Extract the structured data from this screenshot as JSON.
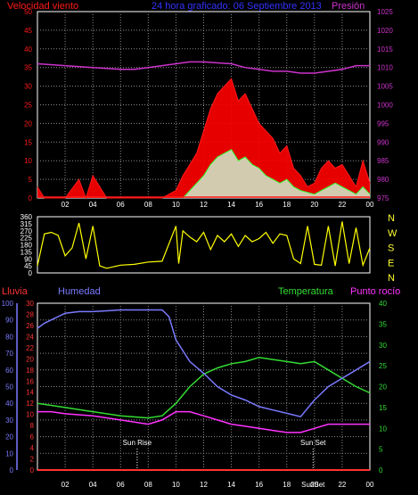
{
  "colors": {
    "wind": "#ff1a1a",
    "gust_fill": "#ff0000",
    "wind_avg": "#33ff33",
    "wind_low": "#cfeecf",
    "pressure": "#cc33cc",
    "direction": "#ffff00",
    "title": "#3333ff",
    "humidity": "#7a7aff",
    "temperature": "#33dd33",
    "dewpoint": "#ff33ff",
    "rain": "#ff3333",
    "axis": "#ffffff",
    "grid": "#8a8a8a"
  },
  "top_panel": {
    "left_label": "Velocidad viento",
    "title": "24 hora graficado: 06 Septiembre 2013",
    "right_label": "Presión"
  },
  "direction_panel": {
    "compass": [
      "N",
      "W",
      "S",
      "E",
      "N"
    ]
  },
  "bottom_panel": {
    "rain_label": "Lluvia",
    "humidity_label": "Humedad",
    "temperature_label": "Temperatura",
    "dewpoint_label": "Punto rocío",
    "sunrise_label": "Sun Rise",
    "sunset_label": "Sun Set",
    "sunset_label_axis": "SunSet"
  },
  "chart_data": [
    {
      "type": "line",
      "panel": "wind-pressure",
      "x_ticks": [
        "02",
        "04",
        "06",
        "08",
        "10",
        "12",
        "14",
        "16",
        "18",
        "20",
        "22",
        "00"
      ],
      "y_left_ticks": [
        0,
        5,
        10,
        15,
        20,
        25,
        30,
        35,
        40,
        45,
        50
      ],
      "y_left_range": [
        0,
        50
      ],
      "y_right_ticks": [
        975,
        980,
        985,
        990,
        995,
        1000,
        1005,
        1010,
        1015,
        1020,
        1025
      ],
      "y_right_range": [
        975,
        1025
      ],
      "x_range": [
        0,
        24
      ],
      "grid": true,
      "series": [
        {
          "kind": "pressure",
          "x": [
            0,
            2,
            4,
            6,
            7,
            8,
            10,
            11,
            12,
            14,
            15,
            16,
            17,
            18,
            19,
            20,
            22,
            23,
            24
          ],
          "y": [
            1011,
            1010.5,
            1010,
            1009.5,
            1009.5,
            1010,
            1011,
            1011.5,
            1011.5,
            1011,
            1010,
            1009.5,
            1009,
            1009,
            1008.5,
            1008.5,
            1009.5,
            1010.5,
            1010.5
          ]
        },
        {
          "kind": "gust",
          "x": [
            0,
            0.5,
            2,
            3,
            3.5,
            4,
            5,
            7,
            8,
            9,
            10,
            10.5,
            11,
            11.5,
            12,
            12.5,
            13,
            13.5,
            14,
            14.5,
            15,
            15.5,
            16,
            16.5,
            17,
            17.5,
            18,
            18.5,
            19,
            19.5,
            20,
            20.5,
            21,
            21.5,
            22,
            22.5,
            23,
            23.5,
            24
          ],
          "y": [
            3,
            0,
            0,
            5,
            0,
            6,
            0,
            0,
            0,
            0,
            2,
            6,
            9,
            12,
            18,
            24,
            28,
            30,
            32,
            26,
            28,
            24,
            20,
            18,
            16,
            12,
            14,
            8,
            6,
            3,
            4,
            8,
            10,
            8,
            9,
            6,
            3,
            10,
            4
          ]
        },
        {
          "kind": "average",
          "x": [
            10.5,
            11,
            11.5,
            12,
            12.5,
            13,
            13.5,
            14,
            14.5,
            15,
            15.5,
            16,
            16.5,
            17,
            17.5,
            18,
            18.5,
            19,
            20,
            20.5,
            21,
            21.5,
            22,
            22.5,
            23,
            23.5,
            24
          ],
          "y": [
            0,
            2,
            4,
            6,
            9,
            11,
            12,
            13,
            10,
            11,
            9,
            8,
            6,
            5,
            4,
            5,
            3,
            2,
            1,
            2,
            3,
            4,
            3,
            2,
            1,
            3,
            1
          ]
        }
      ]
    },
    {
      "type": "line",
      "panel": "wind-direction",
      "y_left_ticks": [
        0,
        45,
        90,
        135,
        180,
        225,
        270,
        315,
        360
      ],
      "y_left_range": [
        0,
        360
      ],
      "x_range": [
        0,
        24
      ],
      "series": [
        {
          "kind": "direction",
          "x": [
            0,
            0.5,
            1,
            1.5,
            2,
            2.5,
            3,
            3.5,
            4,
            4.5,
            5,
            6,
            7,
            8,
            9,
            10,
            10.2,
            10.5,
            11,
            11.5,
            12,
            12.5,
            13,
            13.5,
            14,
            14.5,
            15,
            15.5,
            16,
            16.5,
            17,
            17.5,
            18,
            18.5,
            19,
            19.5,
            20,
            20.5,
            21,
            21.5,
            22,
            22.5,
            23,
            23.5,
            24
          ],
          "y": [
            45,
            250,
            260,
            240,
            110,
            160,
            320,
            90,
            300,
            45,
            30,
            50,
            55,
            70,
            75,
            300,
            60,
            270,
            230,
            200,
            260,
            150,
            240,
            200,
            250,
            170,
            240,
            200,
            220,
            260,
            190,
            250,
            240,
            90,
            60,
            300,
            55,
            50,
            300,
            45,
            330,
            60,
            290,
            50,
            160
          ]
        }
      ]
    },
    {
      "type": "line",
      "panel": "humidity-temperature",
      "x_ticks": [
        "02",
        "04",
        "06",
        "08",
        "10",
        "12",
        "14",
        "16",
        "18",
        "20",
        "22",
        "00"
      ],
      "y_humidity_ticks": [
        0,
        10,
        20,
        30,
        40,
        50,
        60,
        70,
        80,
        90,
        100
      ],
      "y_humidity_range": [
        0,
        100
      ],
      "y_rain_ticks": [
        0,
        2,
        4,
        6,
        8,
        10,
        12,
        14,
        16,
        18,
        20,
        22,
        24,
        26,
        28,
        30
      ],
      "y_rain_range": [
        0,
        30
      ],
      "y_temp_ticks": [
        0,
        5,
        10,
        15,
        20,
        25,
        30,
        35,
        40
      ],
      "y_temp_range": [
        0,
        40
      ],
      "x_range": [
        0,
        24
      ],
      "grid": true,
      "series": [
        {
          "kind": "humidity",
          "x": [
            0,
            0.5,
            1,
            2,
            3,
            4,
            6,
            8,
            9,
            9.5,
            10,
            11,
            12,
            13,
            14,
            15,
            16,
            17,
            18,
            19,
            20,
            21,
            22,
            23,
            24
          ],
          "y": [
            85,
            88,
            90,
            94,
            95,
            95,
            96,
            96,
            96,
            92,
            78,
            65,
            58,
            50,
            45,
            42,
            38,
            36,
            34,
            32,
            42,
            50,
            55,
            60,
            65
          ]
        },
        {
          "kind": "temperature",
          "x": [
            0,
            1,
            2,
            4,
            6,
            8,
            9,
            10,
            11,
            12,
            13,
            14,
            15,
            16,
            17,
            18,
            19,
            20,
            21,
            22,
            23,
            24
          ],
          "y": [
            16,
            15.5,
            15,
            14,
            13,
            12.5,
            13,
            16,
            20,
            23,
            24.5,
            25.5,
            26,
            27,
            26.5,
            26,
            25.5,
            26,
            24,
            22,
            20,
            18.5
          ]
        },
        {
          "kind": "dewpoint",
          "x": [
            0,
            1,
            2,
            4,
            6,
            8,
            9,
            10,
            11,
            12,
            13,
            14,
            15,
            16,
            17,
            18,
            19,
            20,
            21,
            22,
            23,
            24
          ],
          "y": [
            14,
            14,
            13.5,
            13,
            12,
            11,
            12,
            14,
            14,
            13,
            12,
            11,
            10.5,
            10,
            9.5,
            9,
            9,
            10,
            11,
            11,
            11,
            11
          ]
        },
        {
          "kind": "rain",
          "x": [
            0,
            24
          ],
          "y": [
            0,
            0
          ]
        }
      ],
      "sunrise_hour": 7.2,
      "sunset_hour": 19.9
    }
  ]
}
